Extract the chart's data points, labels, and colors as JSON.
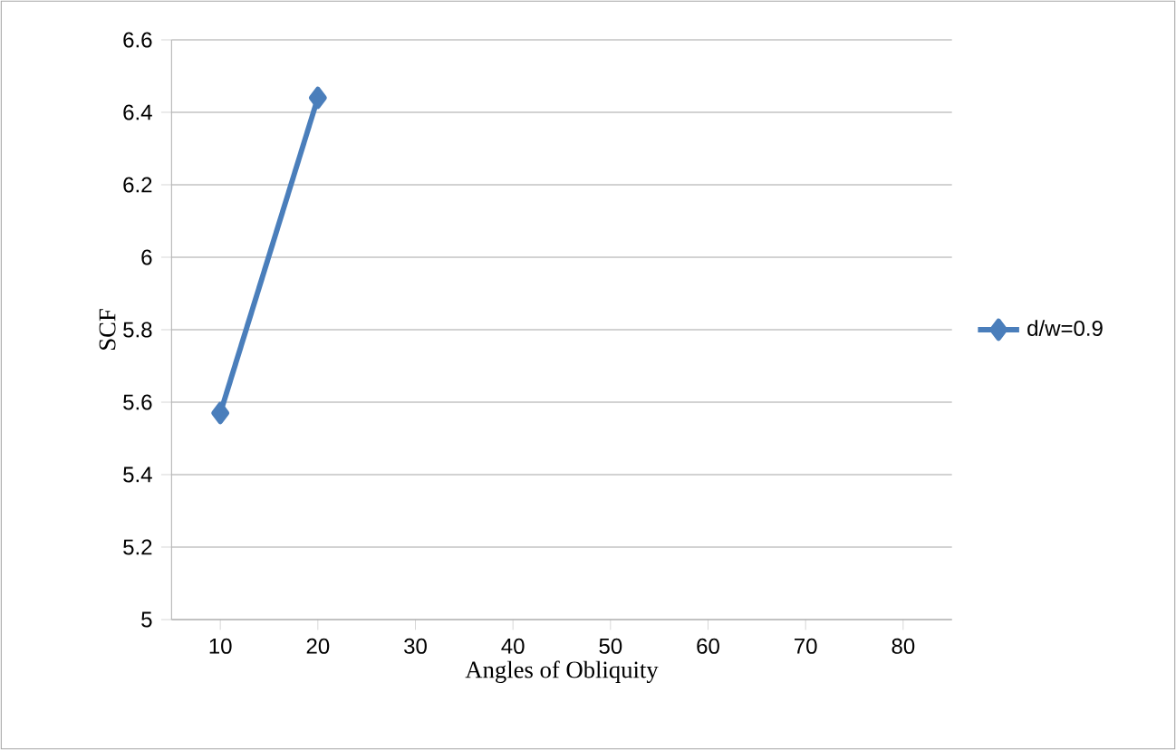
{
  "chart_data": {
    "type": "line",
    "xlabel": "Angles of Obliquity",
    "ylabel": "SCF",
    "categories": [
      "10",
      "20",
      "30",
      "40",
      "50",
      "60",
      "70",
      "80"
    ],
    "series": [
      {
        "name": "d/w=0.9",
        "color": "#4a7ebb",
        "values": [
          5.57,
          6.44,
          null,
          null,
          null,
          null,
          null,
          null
        ]
      }
    ],
    "ylim": [
      5,
      6.6
    ],
    "yticks": [
      5,
      5.2,
      5.4,
      5.6,
      5.8,
      6,
      6.2,
      6.4,
      6.6
    ],
    "grid": "y",
    "legend": "right",
    "marker": "diamond",
    "line_style": "solid"
  }
}
